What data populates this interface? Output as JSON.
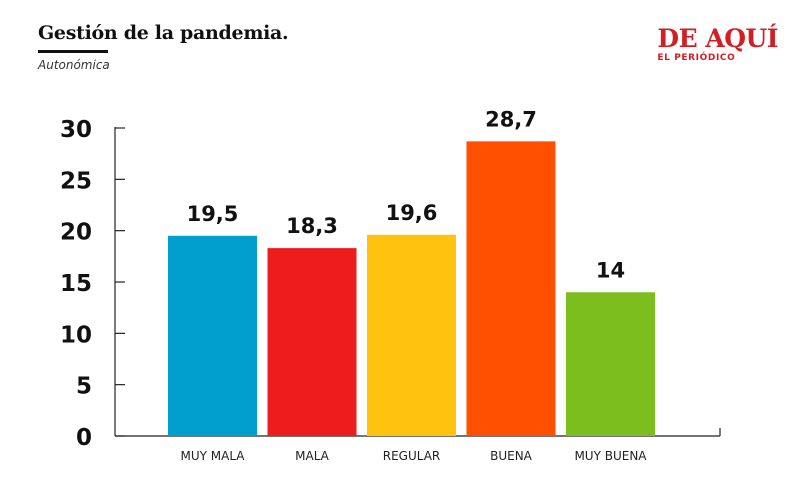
{
  "header": {
    "title": "Gestión de la pandemia.",
    "subtitle": "Autonómica",
    "brand_name": "DE AQUÍ",
    "brand_sub": "EL PERIÓDICO"
  },
  "chart_data": {
    "type": "bar",
    "categories": [
      "MUY MALA",
      "MALA",
      "REGULAR",
      "BUENA",
      "MUY BUENA"
    ],
    "values": [
      19.5,
      18.3,
      19.6,
      28.7,
      14
    ],
    "value_labels": [
      "19,5",
      "18,3",
      "19,6",
      "28,7",
      "14"
    ],
    "colors": [
      "#009fce",
      "#ee1c1c",
      "#ffc20e",
      "#ff4f00",
      "#7cbe1e"
    ],
    "ylim": [
      0,
      30
    ],
    "yticks": [
      0,
      5,
      10,
      15,
      20,
      25,
      30
    ],
    "grid": false,
    "legend": "none"
  }
}
